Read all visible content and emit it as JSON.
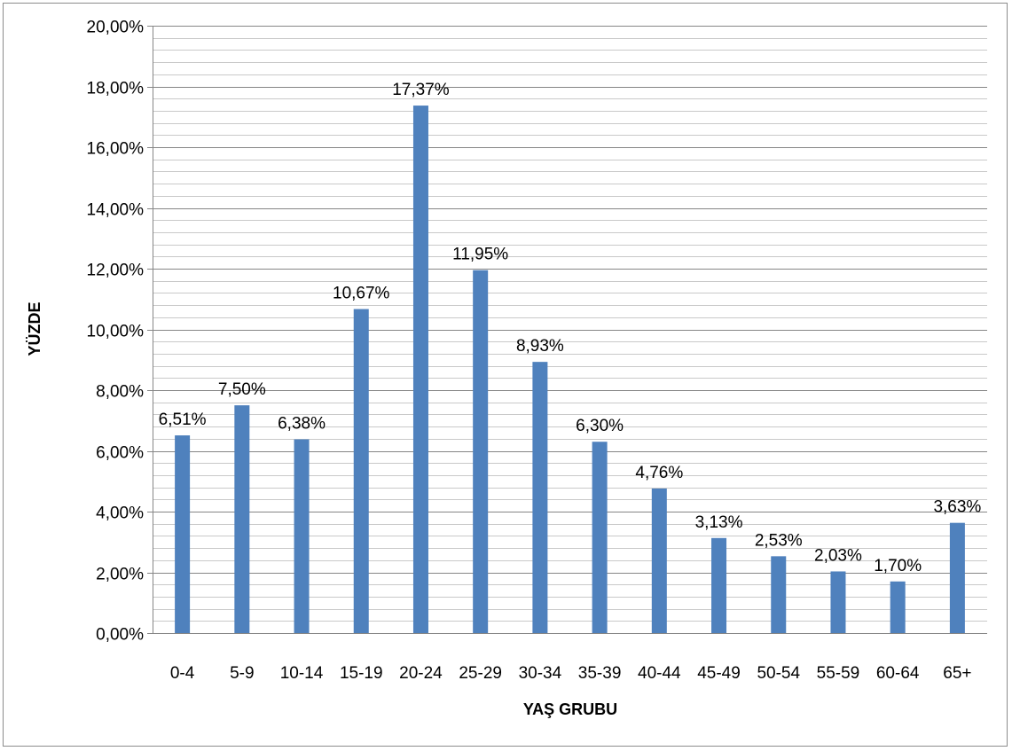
{
  "chart_data": {
    "type": "bar",
    "title": "",
    "xlabel": "YAŞ GRUBU",
    "ylabel": "YÜZDE",
    "categories": [
      "0-4",
      "5-9",
      "10-14",
      "15-19",
      "20-24",
      "25-29",
      "30-34",
      "35-39",
      "40-44",
      "45-49",
      "50-54",
      "55-59",
      "60-64",
      "65+"
    ],
    "values": [
      6.51,
      7.5,
      6.38,
      10.67,
      17.37,
      11.95,
      8.93,
      6.3,
      4.76,
      3.13,
      2.53,
      2.03,
      1.7,
      3.63
    ],
    "data_labels": [
      "6,51%",
      "7,50%",
      "6,38%",
      "10,67%",
      "17,37%",
      "11,95%",
      "8,93%",
      "6,30%",
      "4,76%",
      "3,13%",
      "2,53%",
      "2,03%",
      "1,70%",
      "3,63%"
    ],
    "ylim": [
      0,
      20
    ],
    "y_ticks": [
      0,
      2,
      4,
      6,
      8,
      10,
      12,
      14,
      16,
      18,
      20
    ],
    "y_tick_labels": [
      "0,00%",
      "2,00%",
      "4,00%",
      "6,00%",
      "8,00%",
      "10,00%",
      "12,00%",
      "14,00%",
      "16,00%",
      "18,00%",
      "20,00%"
    ],
    "minor_grid_step": 0.4,
    "grid": true,
    "legend": "none",
    "colors": {
      "bar": "#4f81bd",
      "major_grid": "#868686",
      "minor_grid": "#c9c9c9",
      "axis": "#868686"
    }
  }
}
